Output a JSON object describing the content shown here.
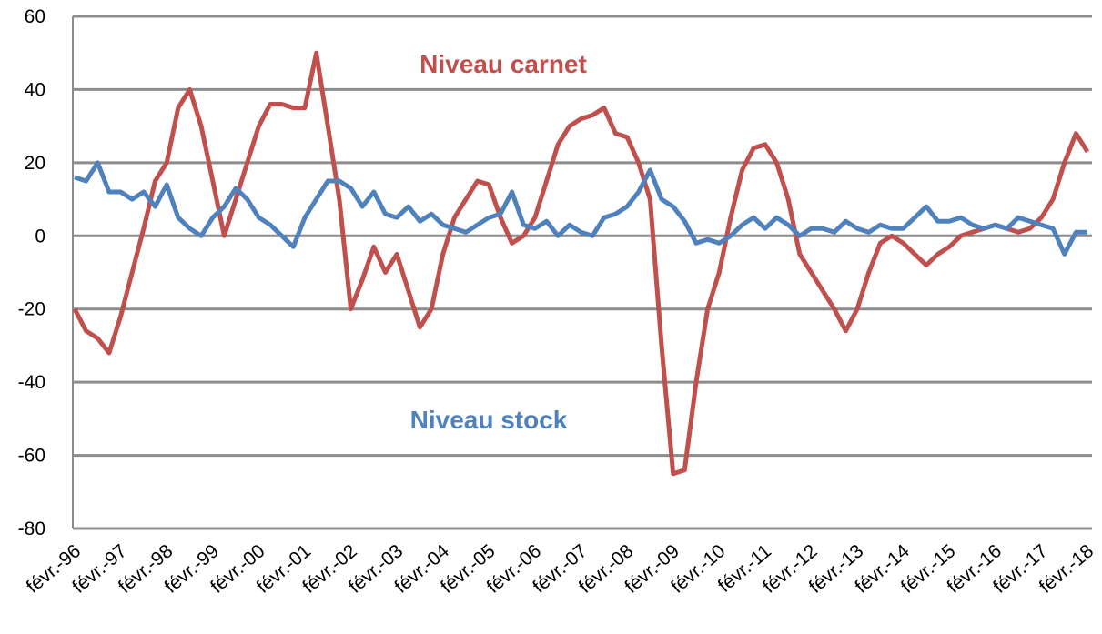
{
  "chart_data": {
    "type": "line",
    "annotations": [
      "Niveau carnet",
      "Niveau stock"
    ],
    "categories": [
      "févr.-96",
      null,
      null,
      null,
      "févr.-97",
      null,
      null,
      null,
      "févr.-98",
      null,
      null,
      null,
      "févr.-99",
      null,
      null,
      null,
      "févr.-00",
      null,
      null,
      null,
      "févr.-01",
      null,
      null,
      null,
      "févr.-02",
      null,
      null,
      null,
      "févr.-03",
      null,
      null,
      null,
      "févr.-04",
      null,
      null,
      null,
      "févr.-05",
      null,
      null,
      null,
      "févr.-06",
      null,
      null,
      null,
      "févr.-07",
      null,
      null,
      null,
      "févr.-08",
      null,
      null,
      null,
      "févr.-09",
      null,
      null,
      null,
      "févr.-10",
      null,
      null,
      null,
      "févr.-11",
      null,
      null,
      null,
      "févr.-12",
      null,
      null,
      null,
      "févr.-13",
      null,
      null,
      null,
      "févr.-14",
      null,
      null,
      null,
      "févr.-15",
      null,
      null,
      null,
      "févr.-16",
      null,
      null,
      null,
      "févr.-17",
      null,
      null,
      null,
      "févr.-18"
    ],
    "series": [
      {
        "name": "Niveau carnet",
        "color": "#c0504d",
        "values": [
          -20,
          -26,
          -28,
          -32,
          -22,
          -10,
          2,
          15,
          20,
          35,
          40,
          30,
          15,
          0,
          10,
          20,
          30,
          36,
          36,
          35,
          35,
          50,
          30,
          10,
          -20,
          -12,
          -3,
          -10,
          -5,
          -15,
          -25,
          -20,
          -5,
          5,
          10,
          15,
          14,
          5,
          -2,
          0,
          5,
          15,
          25,
          30,
          32,
          33,
          35,
          28,
          27,
          20,
          10,
          -30,
          -65,
          -64,
          -40,
          -20,
          -10,
          5,
          18,
          24,
          25,
          20,
          10,
          -5,
          -10,
          -15,
          -20,
          -26,
          -20,
          -10,
          -2,
          0,
          -2,
          -5,
          -8,
          -5,
          -3,
          0,
          1,
          2,
          3,
          2,
          1,
          2,
          5,
          10,
          20,
          28,
          23
        ]
      },
      {
        "name": "Niveau stock",
        "color": "#4f81bd",
        "values": [
          16,
          15,
          20,
          12,
          12,
          10,
          12,
          8,
          14,
          5,
          2,
          0,
          5,
          8,
          13,
          10,
          5,
          3,
          0,
          -3,
          5,
          10,
          15,
          15,
          13,
          8,
          12,
          6,
          5,
          8,
          4,
          6,
          3,
          2,
          1,
          3,
          5,
          6,
          12,
          3,
          2,
          4,
          0,
          3,
          1,
          0,
          5,
          6,
          8,
          12,
          18,
          10,
          8,
          4,
          -2,
          -1,
          -2,
          0,
          3,
          5,
          2,
          5,
          3,
          0,
          2,
          2,
          1,
          4,
          2,
          1,
          3,
          2,
          2,
          5,
          8,
          4,
          4,
          5,
          3,
          2,
          3,
          2,
          5,
          4,
          3,
          2,
          -5,
          1,
          1
        ]
      }
    ],
    "ylim": [
      -80,
      60
    ],
    "yticks": [
      -80,
      -60,
      -40,
      -20,
      0,
      20,
      40,
      60
    ],
    "grid": true
  }
}
